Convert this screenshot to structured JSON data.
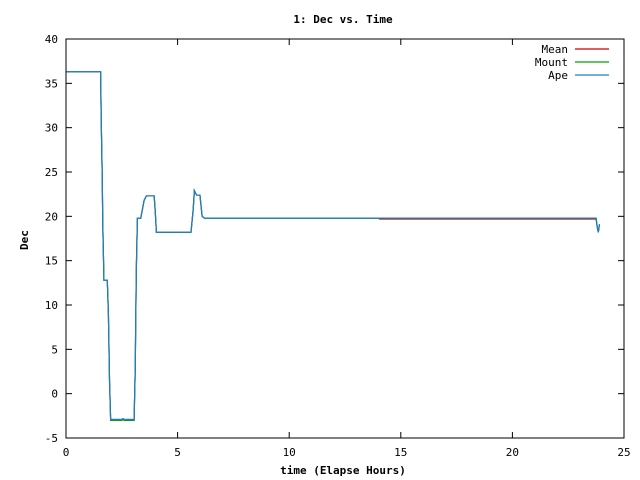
{
  "chart_data": {
    "type": "line",
    "title": "1: Dec vs. Time",
    "xlabel": "time (Elapse Hours)",
    "ylabel": "Dec",
    "xlim": [
      0,
      25
    ],
    "ylim": [
      -5,
      40
    ],
    "xticks": [
      0,
      5,
      10,
      15,
      20,
      25
    ],
    "yticks": [
      -5,
      0,
      5,
      10,
      15,
      20,
      25,
      30,
      35,
      40
    ],
    "grid": false,
    "legend": "top-right",
    "series": [
      {
        "name": "Mean",
        "color": "#cc0000",
        "points": [
          [
            0,
            36.3
          ],
          [
            1.55,
            36.3
          ],
          [
            1.58,
            30.5
          ],
          [
            1.62,
            25
          ],
          [
            1.65,
            18.8
          ],
          [
            1.7,
            12.8
          ],
          [
            1.85,
            12.8
          ],
          [
            1.9,
            9
          ],
          [
            1.95,
            1.5
          ],
          [
            2.0,
            -3.0
          ],
          [
            2.5,
            -3.0
          ],
          [
            2.55,
            -2.9
          ],
          [
            2.6,
            -3.0
          ],
          [
            3.05,
            -3.0
          ],
          [
            3.1,
            2.5
          ],
          [
            3.15,
            14
          ],
          [
            3.2,
            19.8
          ],
          [
            3.35,
            19.8
          ],
          [
            3.5,
            21.8
          ],
          [
            3.6,
            22.3
          ],
          [
            3.95,
            22.3
          ],
          [
            4.0,
            20.5
          ],
          [
            4.05,
            18.2
          ],
          [
            5.6,
            18.2
          ],
          [
            5.7,
            20.8
          ],
          [
            5.75,
            22.9
          ],
          [
            5.85,
            22.4
          ],
          [
            6.0,
            22.4
          ],
          [
            6.1,
            20.0
          ],
          [
            6.2,
            19.8
          ],
          [
            14.0,
            19.8
          ],
          [
            14.05,
            19.7
          ],
          [
            23.75,
            19.7
          ],
          [
            23.8,
            18.8
          ],
          [
            23.85,
            18.2
          ],
          [
            23.9,
            19.1
          ]
        ]
      },
      {
        "name": "Mount",
        "color": "#00a000",
        "points": [
          [
            0,
            36.3
          ],
          [
            1.55,
            36.3
          ],
          [
            1.58,
            30.5
          ],
          [
            1.62,
            25
          ],
          [
            1.65,
            18.8
          ],
          [
            1.7,
            12.8
          ],
          [
            1.85,
            12.8
          ],
          [
            1.9,
            9
          ],
          [
            1.95,
            1.5
          ],
          [
            2.0,
            -3.0
          ],
          [
            2.5,
            -3.0
          ],
          [
            2.55,
            -2.9
          ],
          [
            2.6,
            -3.0
          ],
          [
            3.05,
            -3.0
          ],
          [
            3.1,
            2.5
          ],
          [
            3.15,
            14
          ],
          [
            3.2,
            19.8
          ],
          [
            3.35,
            19.8
          ],
          [
            3.5,
            21.8
          ],
          [
            3.6,
            22.3
          ],
          [
            3.95,
            22.3
          ],
          [
            4.0,
            20.5
          ],
          [
            4.05,
            18.2
          ],
          [
            5.6,
            18.2
          ],
          [
            5.7,
            20.8
          ],
          [
            5.75,
            22.9
          ],
          [
            5.85,
            22.4
          ],
          [
            6.0,
            22.4
          ],
          [
            6.1,
            20.0
          ],
          [
            6.2,
            19.8
          ],
          [
            23.75,
            19.8
          ],
          [
            23.8,
            18.8
          ],
          [
            23.85,
            18.2
          ],
          [
            23.9,
            19.1
          ]
        ]
      },
      {
        "name": "Ape",
        "color": "#1e7fc8",
        "points": [
          [
            0,
            36.3
          ],
          [
            1.55,
            36.3
          ],
          [
            1.58,
            30.5
          ],
          [
            1.62,
            25
          ],
          [
            1.65,
            18.8
          ],
          [
            1.7,
            12.8
          ],
          [
            1.85,
            12.8
          ],
          [
            1.9,
            9
          ],
          [
            1.95,
            1.5
          ],
          [
            2.0,
            -2.9
          ],
          [
            2.5,
            -2.9
          ],
          [
            2.55,
            -2.8
          ],
          [
            2.6,
            -2.9
          ],
          [
            3.05,
            -2.9
          ],
          [
            3.1,
            2.5
          ],
          [
            3.15,
            14
          ],
          [
            3.2,
            19.8
          ],
          [
            3.35,
            19.8
          ],
          [
            3.5,
            21.8
          ],
          [
            3.6,
            22.3
          ],
          [
            3.95,
            22.3
          ],
          [
            4.0,
            20.5
          ],
          [
            4.05,
            18.2
          ],
          [
            5.6,
            18.2
          ],
          [
            5.7,
            20.8
          ],
          [
            5.75,
            22.9
          ],
          [
            5.85,
            22.4
          ],
          [
            6.0,
            22.4
          ],
          [
            6.1,
            20.0
          ],
          [
            6.2,
            19.8
          ],
          [
            23.75,
            19.8
          ],
          [
            23.8,
            18.8
          ],
          [
            23.85,
            18.2
          ],
          [
            23.9,
            19.1
          ]
        ]
      }
    ]
  }
}
